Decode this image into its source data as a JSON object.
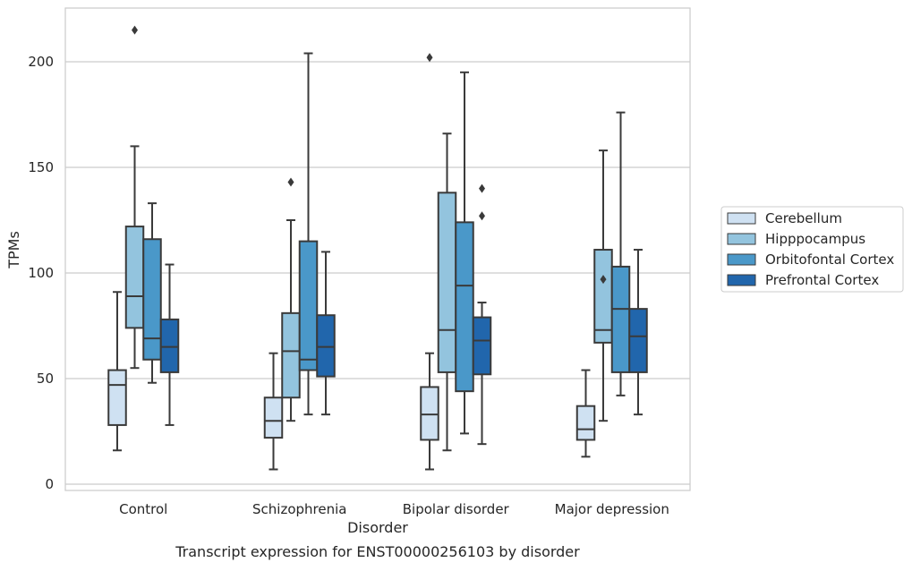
{
  "caption": "Transcript expression for ENST00000256103 by disorder",
  "chart_data": {
    "type": "box",
    "xlabel": "Disorder",
    "ylabel": "TPMs",
    "ylim": [
      -3,
      225
    ],
    "yticks": [
      0,
      50,
      100,
      150,
      200
    ],
    "categories": [
      "Control",
      "Schizophrenia",
      "Bipolar disorder",
      "Major depression"
    ],
    "grid": "horizontal",
    "legend_position": "right",
    "series": [
      {
        "name": "Cerebellum",
        "color": "#cfe1f2",
        "boxes": [
          {
            "whislo": 16,
            "q1": 28,
            "med": 47,
            "q3": 54,
            "whishi": 91,
            "fliers": []
          },
          {
            "whislo": 7,
            "q1": 22,
            "med": 30,
            "q3": 41,
            "whishi": 62,
            "fliers": []
          },
          {
            "whislo": 7,
            "q1": 21,
            "med": 33,
            "q3": 46,
            "whishi": 62,
            "fliers": [
              202
            ]
          },
          {
            "whislo": 13,
            "q1": 21,
            "med": 26,
            "q3": 37,
            "whishi": 54,
            "fliers": []
          }
        ]
      },
      {
        "name": "Hipppocampus",
        "color": "#93c4de",
        "boxes": [
          {
            "whislo": 55,
            "q1": 74,
            "med": 89,
            "q3": 122,
            "whishi": 160,
            "fliers": [
              215
            ]
          },
          {
            "whislo": 30,
            "q1": 41,
            "med": 63,
            "q3": 81,
            "whishi": 125,
            "fliers": [
              143
            ]
          },
          {
            "whislo": 16,
            "q1": 53,
            "med": 73,
            "q3": 138,
            "whishi": 166,
            "fliers": []
          },
          {
            "whislo": 30,
            "q1": 67,
            "med": 73,
            "q3": 111,
            "whishi": 158,
            "fliers": [
              97
            ]
          }
        ]
      },
      {
        "name": "Orbitofontal Cortex",
        "color": "#4a98c9",
        "boxes": [
          {
            "whislo": 48,
            "q1": 59,
            "med": 69,
            "q3": 116,
            "whishi": 133,
            "fliers": []
          },
          {
            "whislo": 33,
            "q1": 54,
            "med": 59,
            "q3": 115,
            "whishi": 204,
            "fliers": []
          },
          {
            "whislo": 24,
            "q1": 44,
            "med": 94,
            "q3": 124,
            "whishi": 195,
            "fliers": []
          },
          {
            "whislo": 42,
            "q1": 53,
            "med": 83,
            "q3": 103,
            "whishi": 176,
            "fliers": []
          }
        ]
      },
      {
        "name": "Prefrontal Cortex",
        "color": "#2166ac",
        "boxes": [
          {
            "whislo": 28,
            "q1": 53,
            "med": 65,
            "q3": 78,
            "whishi": 104,
            "fliers": []
          },
          {
            "whislo": 33,
            "q1": 51,
            "med": 65,
            "q3": 80,
            "whishi": 110,
            "fliers": []
          },
          {
            "whislo": 19,
            "q1": 52,
            "med": 68,
            "q3": 79,
            "whishi": 86,
            "fliers": [
              127,
              140
            ]
          },
          {
            "whislo": 33,
            "q1": 53,
            "med": 70,
            "q3": 83,
            "whishi": 111,
            "fliers": []
          }
        ]
      }
    ]
  }
}
